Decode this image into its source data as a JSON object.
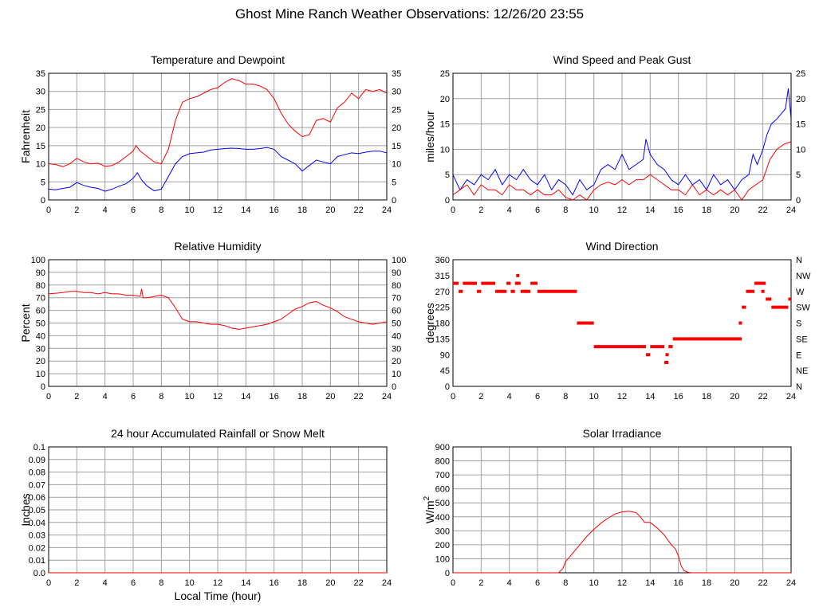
{
  "page": {
    "title": "Ghost Mine Ranch Weather Observations: 12/26/20 23:55"
  },
  "colors": {
    "primary": "#ff0000",
    "secondary": "#0000ff",
    "grid": "#a0a0a0",
    "frame": "#000000"
  },
  "chart_data": [
    {
      "id": "temp",
      "type": "line",
      "title": "Temperature and Dewpoint",
      "xlabel": "",
      "ylabel": "Fahrenheit",
      "xlim": [
        0,
        24
      ],
      "ylim": [
        0,
        35
      ],
      "xticks": [
        0,
        2,
        4,
        6,
        8,
        10,
        12,
        14,
        16,
        18,
        20,
        22,
        24
      ],
      "yticks": [
        0,
        5,
        10,
        15,
        20,
        25,
        30,
        35
      ],
      "right_ticks": [
        "0",
        "5",
        "10",
        "15",
        "20",
        "25",
        "30",
        "35"
      ],
      "grid": true,
      "series": [
        {
          "color": "#ff0000",
          "x": [
            0,
            0.5,
            1,
            1.5,
            2,
            2.5,
            3,
            3.5,
            4,
            4.5,
            5,
            5.5,
            6,
            6.2,
            6.5,
            7,
            7.5,
            8,
            8.5,
            9,
            9.5,
            10,
            10.5,
            11,
            11.5,
            12,
            12.5,
            13,
            13.5,
            14,
            14.5,
            15,
            15.5,
            16,
            16.5,
            17,
            17.5,
            18,
            18.5,
            19,
            19.5,
            20,
            20.5,
            21,
            21.5,
            22,
            22.5,
            23,
            23.5,
            24
          ],
          "y": [
            10,
            9.8,
            9.2,
            10,
            11.5,
            10.5,
            10,
            10.2,
            9.3,
            9.5,
            10.5,
            12,
            13.5,
            15,
            13.5,
            12,
            10.5,
            10,
            14,
            22,
            27,
            28,
            28.5,
            29.5,
            30.5,
            31,
            32.5,
            33.5,
            33,
            32,
            32,
            31.5,
            30.5,
            28,
            24,
            21,
            19,
            17.5,
            18,
            22,
            22.5,
            21.5,
            25.5,
            27,
            29.5,
            28,
            30.5,
            30,
            30.5,
            29.5
          ]
        },
        {
          "color": "#0000ff",
          "x": [
            0,
            0.5,
            1,
            1.5,
            2,
            2.5,
            3,
            3.5,
            4,
            4.5,
            5,
            5.5,
            6,
            6.3,
            6.6,
            7,
            7.5,
            8,
            8.5,
            9,
            9.5,
            10,
            10.5,
            11,
            11.5,
            12,
            12.5,
            13,
            13.5,
            14,
            14.5,
            15,
            15.5,
            16,
            16.5,
            17,
            17.5,
            18,
            18.5,
            19,
            19.5,
            20,
            20.5,
            21,
            21.5,
            22,
            22.5,
            23,
            23.5,
            24
          ],
          "y": [
            3,
            2.8,
            3.2,
            3.5,
            4.8,
            4,
            3.5,
            3.2,
            2.4,
            3,
            3.8,
            4.5,
            6,
            7.5,
            5.5,
            3.8,
            2.5,
            3,
            6.5,
            10,
            12,
            12.8,
            13,
            13.2,
            13.8,
            14,
            14.2,
            14.3,
            14.2,
            14,
            14,
            14.2,
            14.5,
            14,
            12,
            11,
            10,
            8,
            9.5,
            11,
            10.5,
            10,
            12,
            12.5,
            13,
            12.8,
            13.2,
            13.5,
            13.5,
            13
          ]
        }
      ]
    },
    {
      "id": "wind",
      "type": "line",
      "title": "Wind Speed and Peak Gust",
      "xlabel": "",
      "ylabel": "miles/hour",
      "xlim": [
        0,
        24
      ],
      "ylim": [
        0,
        25
      ],
      "xticks": [
        0,
        2,
        4,
        6,
        8,
        10,
        12,
        14,
        16,
        18,
        20,
        22,
        24
      ],
      "yticks": [
        0,
        5,
        10,
        15,
        20,
        25
      ],
      "right_ticks": [
        "0",
        "5",
        "10",
        "15",
        "20",
        "25"
      ],
      "grid": true,
      "series": [
        {
          "color": "#0000ff",
          "x": [
            0,
            0.5,
            1,
            1.5,
            2,
            2.5,
            3,
            3.5,
            4,
            4.5,
            5,
            5.5,
            6,
            6.5,
            7,
            7.5,
            8,
            8.5,
            9,
            9.5,
            10,
            10.5,
            11,
            11.5,
            12,
            12.5,
            13,
            13.5,
            13.7,
            14,
            14.5,
            15,
            15.5,
            16,
            16.5,
            17,
            17.5,
            18,
            18.5,
            19,
            19.5,
            20,
            20.5,
            21,
            21.3,
            21.6,
            22,
            22.3,
            22.6,
            23,
            23.3,
            23.6,
            23.8,
            24
          ],
          "y": [
            5,
            2,
            4,
            3,
            5,
            4,
            6,
            3,
            5,
            4,
            6,
            4,
            3,
            5,
            2,
            4,
            3,
            1,
            4,
            2,
            3,
            6,
            7,
            6,
            9,
            6,
            7,
            8,
            12,
            9,
            7,
            6,
            4,
            3,
            5,
            3,
            4,
            2,
            5,
            3,
            4,
            2,
            4,
            5,
            9,
            7,
            10,
            13,
            15,
            16,
            17,
            18,
            22,
            16
          ]
        },
        {
          "color": "#ff0000",
          "x": [
            0,
            0.5,
            1,
            1.5,
            2,
            2.5,
            3,
            3.5,
            4,
            4.5,
            5,
            5.5,
            6,
            6.5,
            7,
            7.5,
            8,
            8.5,
            9,
            9.5,
            10,
            10.5,
            11,
            11.5,
            12,
            12.5,
            13,
            13.5,
            14,
            14.5,
            15,
            15.5,
            16,
            16.5,
            17,
            17.5,
            18,
            18.5,
            19,
            19.5,
            20,
            20.5,
            21,
            21.5,
            22,
            22.5,
            23,
            23.5,
            24
          ],
          "y": [
            1,
            2,
            3,
            1,
            3,
            2,
            2,
            1,
            3,
            2,
            2,
            1,
            2,
            1,
            1,
            2,
            0.5,
            0,
            1,
            0,
            2,
            3,
            3.5,
            3,
            4,
            3,
            4,
            4,
            5,
            4,
            3,
            2,
            2,
            1,
            3,
            1,
            2,
            1,
            2,
            1,
            2,
            0,
            2,
            3,
            4,
            8,
            10,
            11,
            11.5
          ]
        }
      ]
    },
    {
      "id": "rh",
      "type": "line",
      "title": "Relative Humidity",
      "xlabel": "",
      "ylabel": "Percent",
      "xlim": [
        0,
        24
      ],
      "ylim": [
        0,
        100
      ],
      "xticks": [
        0,
        2,
        4,
        6,
        8,
        10,
        12,
        14,
        16,
        18,
        20,
        22,
        24
      ],
      "yticks": [
        0,
        10,
        20,
        30,
        40,
        50,
        60,
        70,
        80,
        90,
        100
      ],
      "right_ticks": [
        "0",
        "10",
        "20",
        "30",
        "40",
        "50",
        "60",
        "70",
        "80",
        "90",
        "100"
      ],
      "grid": true,
      "series": [
        {
          "color": "#ff0000",
          "x": [
            0,
            0.5,
            1,
            1.5,
            2,
            2.5,
            3,
            3.5,
            4,
            4.5,
            5,
            5.5,
            6,
            6.5,
            6.6,
            6.7,
            7,
            7.5,
            8,
            8.5,
            9,
            9.5,
            10,
            10.5,
            11,
            11.5,
            12,
            12.5,
            13,
            13.5,
            14,
            14.5,
            15,
            15.5,
            16,
            16.5,
            17,
            17.5,
            18,
            18.5,
            19,
            19.5,
            20,
            20.5,
            21,
            21.5,
            22,
            22.5,
            23,
            23.5,
            24
          ],
          "y": [
            73,
            73.5,
            74,
            75,
            75,
            74,
            74,
            73,
            74,
            73,
            73,
            72,
            72,
            71,
            77,
            70,
            70,
            71,
            72,
            70,
            62,
            53,
            51,
            51,
            50,
            49,
            49,
            48,
            46,
            45,
            46,
            47,
            48,
            49,
            51,
            53,
            57,
            61,
            63,
            66,
            67,
            64,
            62,
            59,
            55,
            53,
            51,
            50,
            49,
            50,
            51
          ]
        }
      ]
    },
    {
      "id": "wdir",
      "type": "scatter",
      "title": "Wind Direction",
      "xlabel": "",
      "ylabel": "degrees",
      "xlim": [
        0,
        24
      ],
      "ylim": [
        0,
        360
      ],
      "xticks": [
        0,
        2,
        4,
        6,
        8,
        10,
        12,
        14,
        16,
        18,
        20,
        22,
        24
      ],
      "yticks": [
        0,
        45,
        90,
        135,
        180,
        225,
        270,
        315,
        360
      ],
      "right_ticks": [
        "N",
        "NE",
        "E",
        "SE",
        "S",
        "SW",
        "W",
        "NW",
        "N"
      ],
      "grid": false,
      "segments": [
        {
          "x0": 0,
          "x1": 0.4,
          "y": 293
        },
        {
          "x0": 0.4,
          "x1": 0.7,
          "y": 270
        },
        {
          "x0": 0.7,
          "x1": 1.7,
          "y": 293
        },
        {
          "x0": 1.7,
          "x1": 2.0,
          "y": 270
        },
        {
          "x0": 2.0,
          "x1": 3.0,
          "y": 293
        },
        {
          "x0": 3.0,
          "x1": 3.8,
          "y": 270
        },
        {
          "x0": 3.8,
          "x1": 4.1,
          "y": 293
        },
        {
          "x0": 4.1,
          "x1": 4.4,
          "y": 270
        },
        {
          "x0": 4.4,
          "x1": 4.8,
          "y": 293
        },
        {
          "x0": 4.8,
          "x1": 5.5,
          "y": 270
        },
        {
          "x0": 5.5,
          "x1": 6.0,
          "y": 293
        },
        {
          "x0": 6.0,
          "x1": 8.8,
          "y": 270
        },
        {
          "x0": 8.8,
          "x1": 10.0,
          "y": 180
        },
        {
          "x0": 10.0,
          "x1": 13.7,
          "y": 113
        },
        {
          "x0": 13.7,
          "x1": 14.0,
          "y": 90
        },
        {
          "x0": 14.0,
          "x1": 15.0,
          "y": 113
        },
        {
          "x0": 15.0,
          "x1": 15.3,
          "y": 68
        },
        {
          "x0": 15.3,
          "x1": 15.6,
          "y": 113
        },
        {
          "x0": 15.6,
          "x1": 20.5,
          "y": 135
        },
        {
          "x0": 20.5,
          "x1": 20.8,
          "y": 225
        },
        {
          "x0": 20.8,
          "x1": 21.4,
          "y": 270
        },
        {
          "x0": 21.4,
          "x1": 22.2,
          "y": 293
        },
        {
          "x0": 22.2,
          "x1": 22.6,
          "y": 248
        },
        {
          "x0": 22.6,
          "x1": 23.8,
          "y": 225
        },
        {
          "x0": 23.8,
          "x1": 24.0,
          "y": 248
        }
      ],
      "points": [
        {
          "x": 4.6,
          "y": 315
        },
        {
          "x": 15.2,
          "y": 90
        },
        {
          "x": 20.4,
          "y": 180
        },
        {
          "x": 22.0,
          "y": 270
        }
      ]
    },
    {
      "id": "rain",
      "type": "line",
      "title": "24 hour Accumulated Rainfall or Snow Melt",
      "xlabel": "Local Time (hour)",
      "ylabel": "Inches",
      "xlim": [
        0,
        24
      ],
      "ylim": [
        0,
        0.1
      ],
      "xticks": [
        0,
        2,
        4,
        6,
        8,
        10,
        12,
        14,
        16,
        18,
        20,
        22,
        24
      ],
      "yticks": [
        "0.0",
        "0.01",
        "0.02",
        "0.03",
        "0.04",
        "0.05",
        "0.06",
        "0.07",
        "0.08",
        "0.09",
        "0.1"
      ],
      "grid": true,
      "series": [
        {
          "color": "#ff0000",
          "x": [
            0,
            24
          ],
          "y": [
            0,
            0
          ]
        }
      ]
    },
    {
      "id": "solar",
      "type": "line",
      "title": "Solar Irradiance",
      "xlabel": "",
      "ylabel": "W/m",
      "ylabel_superscript": "2",
      "xlim": [
        0,
        24
      ],
      "ylim": [
        0,
        900
      ],
      "xticks": [
        0,
        2,
        4,
        6,
        8,
        10,
        12,
        14,
        16,
        18,
        20,
        22,
        24
      ],
      "yticks": [
        0,
        100,
        200,
        300,
        400,
        500,
        600,
        700,
        800,
        900
      ],
      "grid": true,
      "series": [
        {
          "color": "#ff0000",
          "x": [
            0,
            7.5,
            7.8,
            8,
            8.5,
            9,
            9.5,
            10,
            10.5,
            11,
            11.5,
            12,
            12.5,
            13,
            13.3,
            13.6,
            14,
            14.5,
            15,
            15.5,
            15.8,
            16,
            16.2,
            16.4,
            16.7,
            17,
            24
          ],
          "y": [
            0,
            0,
            30,
            80,
            140,
            200,
            260,
            310,
            355,
            390,
            420,
            435,
            440,
            430,
            400,
            360,
            360,
            320,
            270,
            200,
            170,
            120,
            50,
            15,
            3,
            0,
            0
          ]
        }
      ]
    }
  ]
}
